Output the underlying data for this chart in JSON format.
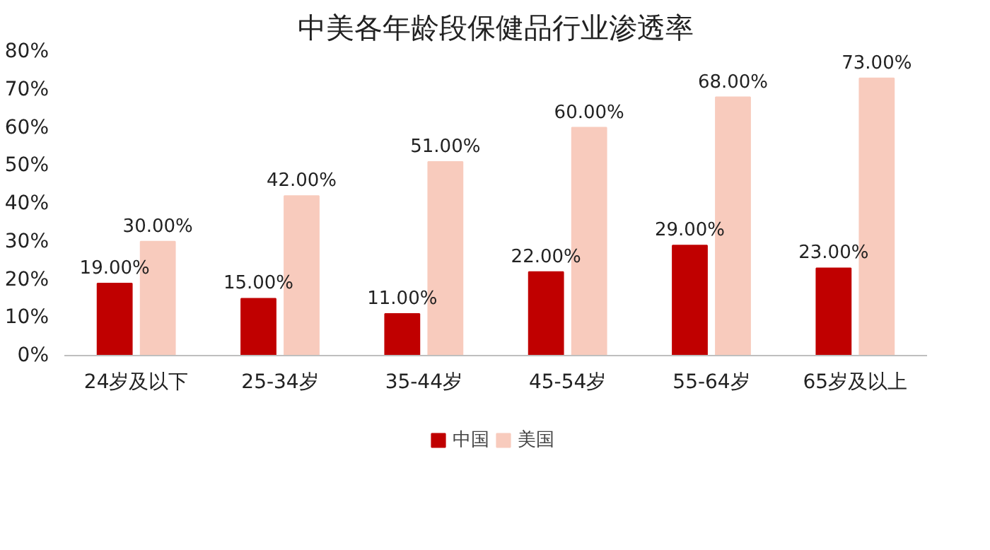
{
  "chart_data": {
    "type": "bar",
    "title": "中美各年龄段保健品行业渗透率",
    "categories": [
      "24岁及以下",
      "25-34岁",
      "35-44岁",
      "45-54岁",
      "55-64岁",
      "65岁及以上"
    ],
    "series": [
      {
        "name": "中国",
        "color": "#c00000",
        "values": [
          19,
          15,
          11,
          22,
          29,
          23
        ],
        "value_labels": [
          "19.00%",
          "15.00%",
          "11.00%",
          "22.00%",
          "29.00%",
          "23.00%"
        ]
      },
      {
        "name": "美国",
        "color": "#f8cbbd",
        "values": [
          30,
          42,
          51,
          60,
          68,
          73
        ],
        "value_labels": [
          "30.00%",
          "42.00%",
          "51.00%",
          "60.00%",
          "68.00%",
          "73.00%"
        ]
      }
    ],
    "ylim": [
      0,
      80
    ],
    "yticks": [
      {
        "value": 0,
        "label": "0%"
      },
      {
        "value": 10,
        "label": "10%"
      },
      {
        "value": 20,
        "label": "20%"
      },
      {
        "value": 30,
        "label": "30%"
      },
      {
        "value": 40,
        "label": "40%"
      },
      {
        "value": 50,
        "label": "50%"
      },
      {
        "value": 60,
        "label": "60%"
      },
      {
        "value": 70,
        "label": "70%"
      },
      {
        "value": 80,
        "label": "80%"
      }
    ],
    "grid": false,
    "legend": "bottom"
  }
}
